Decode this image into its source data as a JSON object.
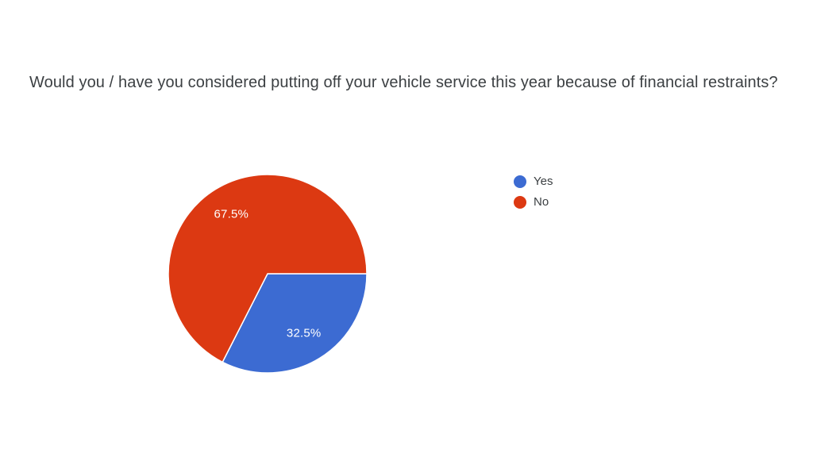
{
  "page": {
    "background_color": "#ffffff"
  },
  "chart_data": {
    "type": "pie",
    "title": "Would you / have you considered putting off your vehicle service this year because of financial restraints?",
    "labels": [
      "Yes",
      "No"
    ],
    "values": [
      32.5,
      67.5
    ],
    "slice_labels": [
      "32.5%",
      "67.5%"
    ],
    "colors": [
      "#3c6bd2",
      "#dc3912"
    ],
    "start_angle_deg": 0,
    "direction": "clockwise",
    "legend_position": "right",
    "slice_label_color": "#ffffff",
    "slice_separator_color": "#ffffff",
    "title_color": "#3c4043"
  }
}
